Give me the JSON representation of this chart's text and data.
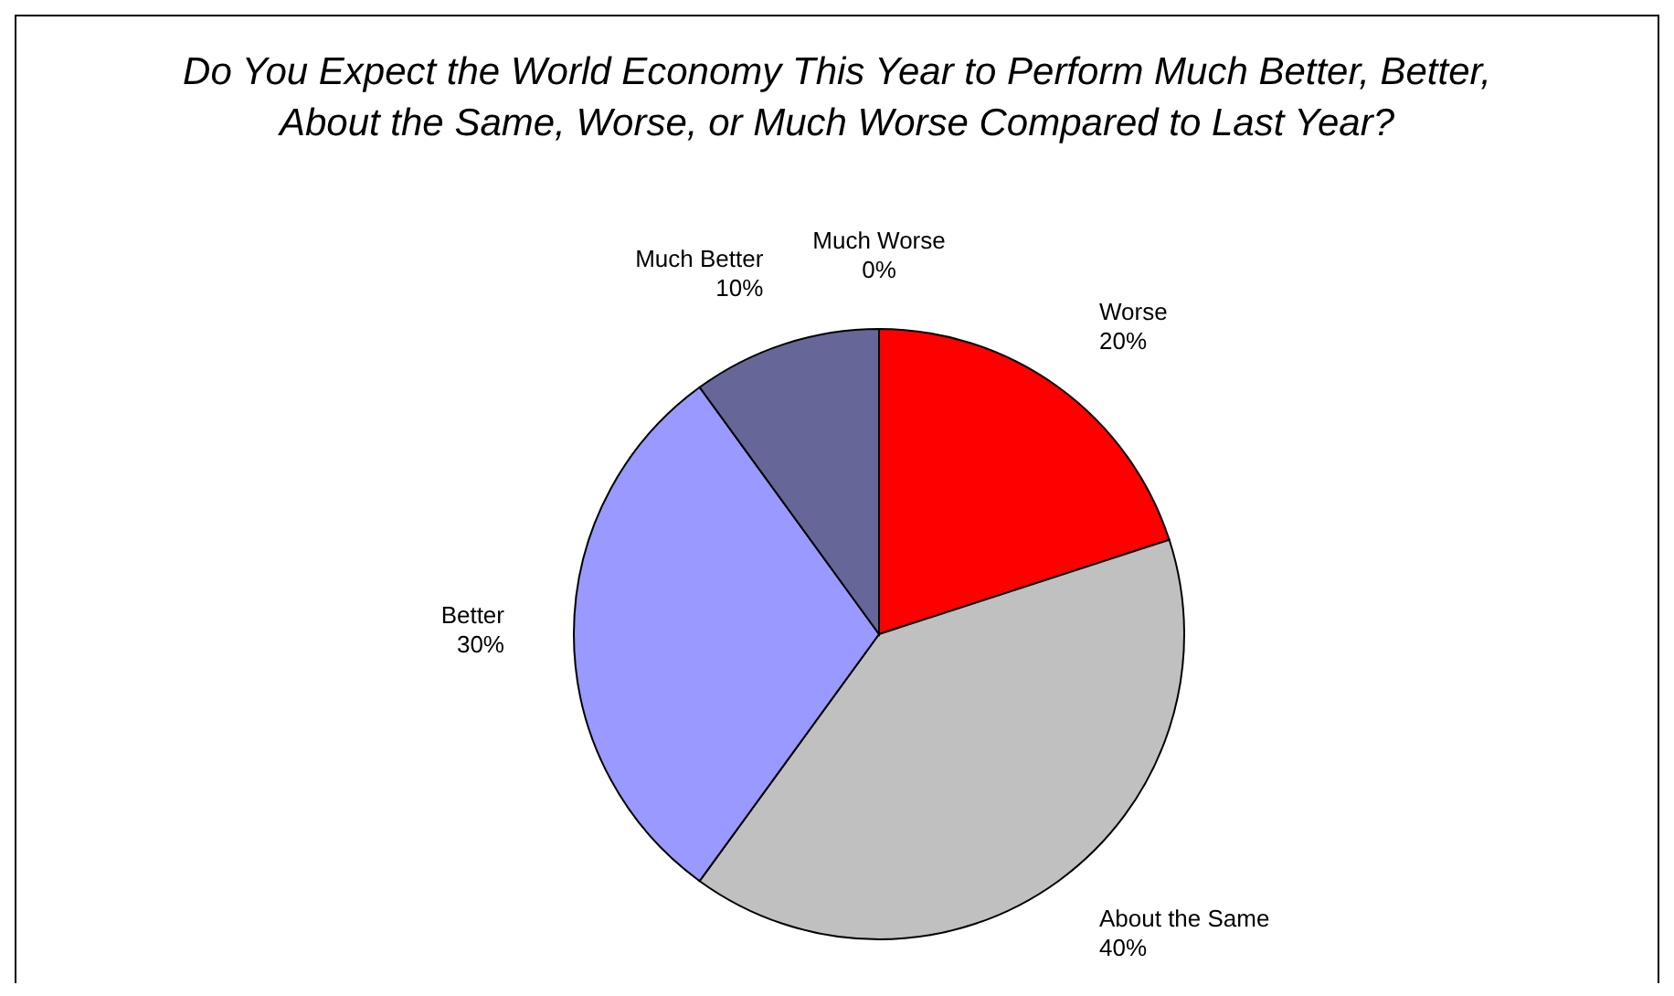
{
  "chart_data": {
    "type": "pie",
    "title": "Do You Expect the World Economy This Year to Perform Much Better, Better, About the Same, Worse, or Much Worse Compared to Last Year?",
    "categories": [
      "Worse",
      "About the Same",
      "Better",
      "Much Better",
      "Much Worse"
    ],
    "values": [
      20,
      40,
      30,
      10,
      0
    ],
    "colors": [
      "#ff0000",
      "#c0c0c0",
      "#9999ff",
      "#666699",
      "#993366"
    ],
    "value_labels": [
      "20%",
      "40%",
      "30%",
      "10%",
      "0%"
    ]
  }
}
